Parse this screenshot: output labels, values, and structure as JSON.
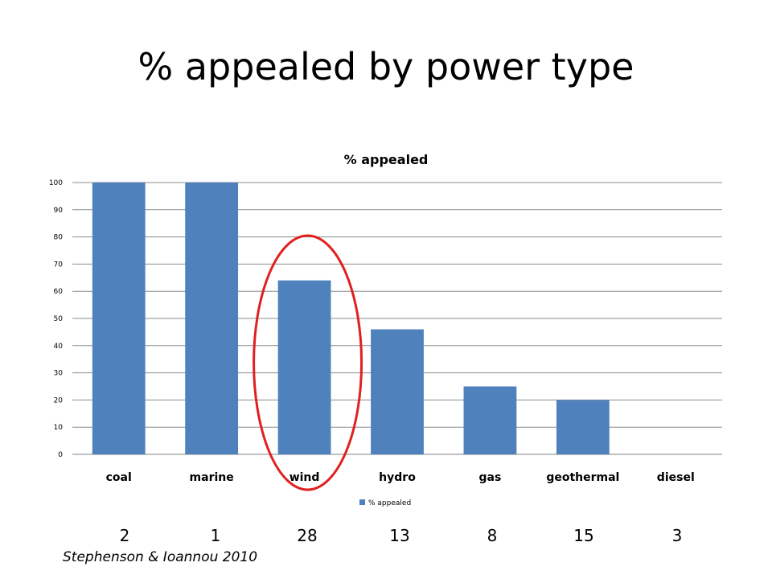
{
  "slide": {
    "title": "% appealed by power type",
    "counts": [
      "2",
      "1",
      "28",
      "13",
      "8",
      "15",
      "3"
    ],
    "citation": "Stephenson & Ioannou 2010"
  },
  "chart_data": {
    "type": "bar",
    "title": "% appealed",
    "categories": [
      "coal",
      "marine",
      "wind",
      "hydro",
      "gas",
      "geothermal",
      "diesel"
    ],
    "series": [
      {
        "name": "% appealed",
        "values": [
          100,
          100,
          64,
          46,
          25,
          20,
          0
        ]
      }
    ],
    "xlabel": "",
    "ylabel": "",
    "ylim": [
      0,
      100
    ],
    "yticks": [
      0,
      10,
      20,
      30,
      40,
      50,
      60,
      70,
      80,
      90,
      100
    ],
    "grid": true,
    "legend": "bottom",
    "bar_color": "#4f81bd",
    "annotation": {
      "shape": "ellipse",
      "color": "#e02020",
      "highlights": "wind"
    }
  }
}
